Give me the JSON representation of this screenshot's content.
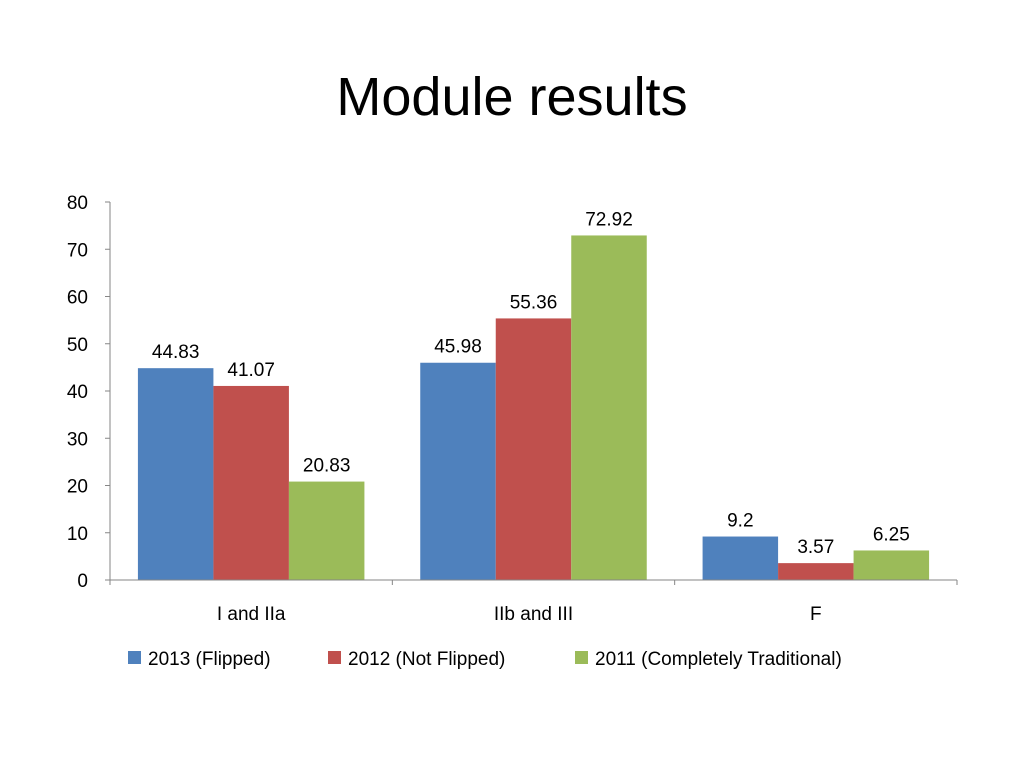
{
  "slide": {
    "title": "Module results"
  },
  "chart_data": {
    "type": "bar",
    "title": "Module results",
    "categories": [
      "I and IIa",
      "IIb and III",
      "F"
    ],
    "series": [
      {
        "name": "2013 (Flipped)",
        "color": "#4F81BD",
        "values": [
          44.83,
          45.98,
          9.2
        ],
        "labels": [
          "44.83",
          "45.98",
          "9.2"
        ]
      },
      {
        "name": "2012 (Not Flipped)",
        "color": "#C0504D",
        "values": [
          41.07,
          55.36,
          3.57
        ],
        "labels": [
          "41.07",
          "55.36",
          "3.57"
        ]
      },
      {
        "name": "2011 (Completely Traditional)",
        "color": "#9BBB59",
        "values": [
          20.83,
          72.92,
          6.25
        ],
        "labels": [
          "20.83",
          "72.92",
          "6.25"
        ]
      }
    ],
    "ylim": [
      0,
      80
    ],
    "yticks": [
      "0",
      "10",
      "20",
      "30",
      "40",
      "50",
      "60",
      "70",
      "80"
    ],
    "grid": false,
    "legend_position": "bottom",
    "xlabel": "",
    "ylabel": ""
  }
}
